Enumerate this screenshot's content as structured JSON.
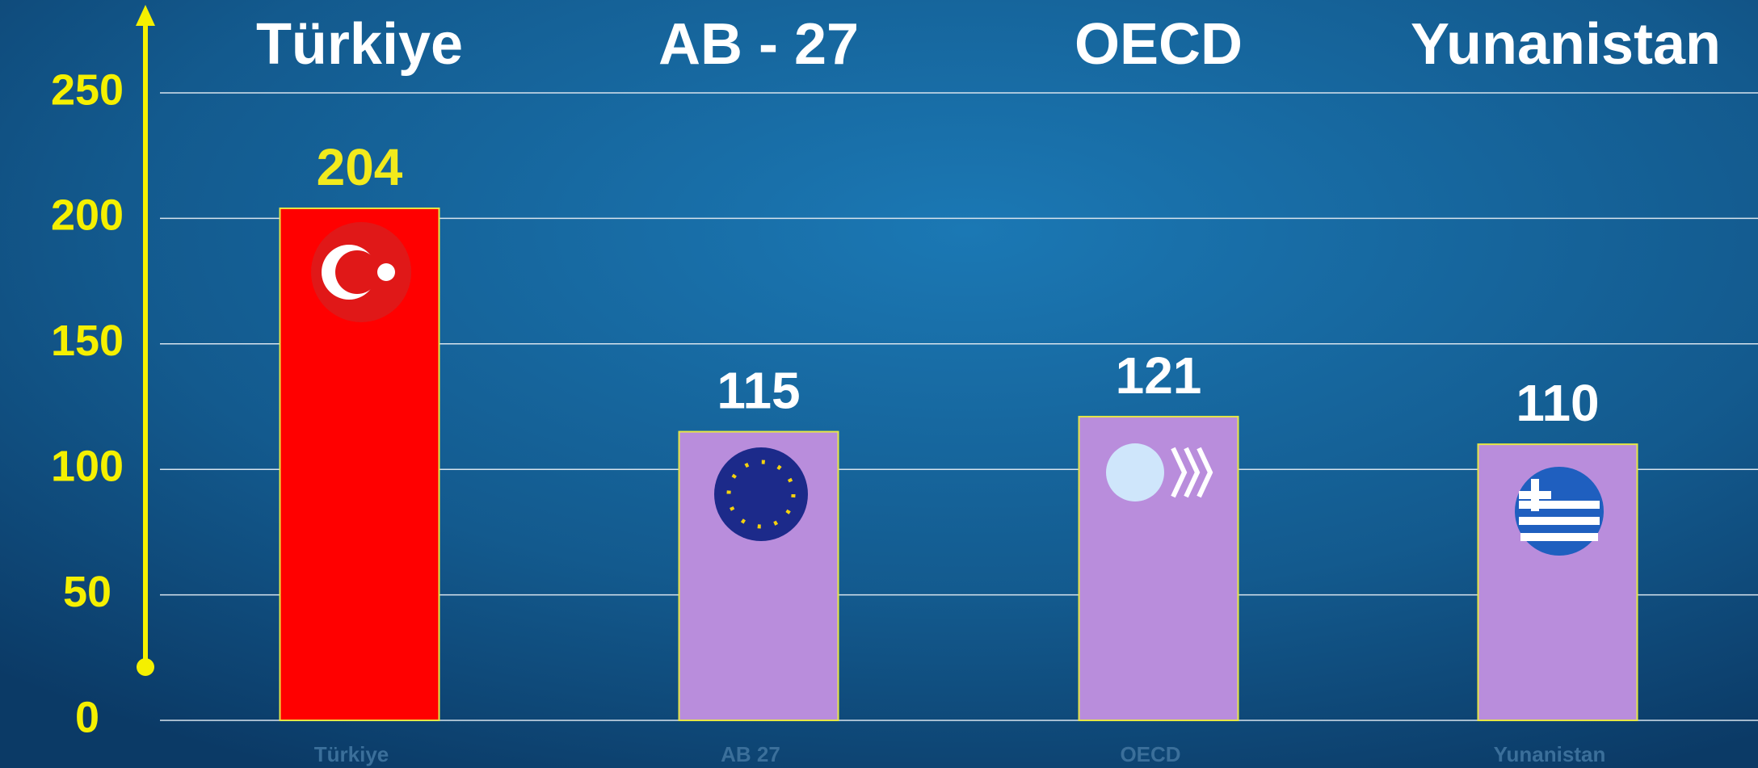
{
  "chart_data": {
    "type": "bar",
    "headers": [
      "Türkiye",
      "AB - 27",
      "OECD",
      "Yunanistan"
    ],
    "categories": [
      "Türkiye",
      "AB 27",
      "OECD",
      "Yunanistan"
    ],
    "values": [
      204,
      115,
      121,
      110
    ],
    "colors": [
      "#ff0000",
      "#b98ddc",
      "#b98ddc",
      "#b98ddc"
    ],
    "label_colors": [
      "#f2ea1c",
      "#ffffff",
      "#ffffff",
      "#ffffff"
    ],
    "ylim": [
      0,
      250
    ],
    "yticks": [
      0,
      50,
      100,
      150,
      200,
      250
    ],
    "grid": true
  }
}
